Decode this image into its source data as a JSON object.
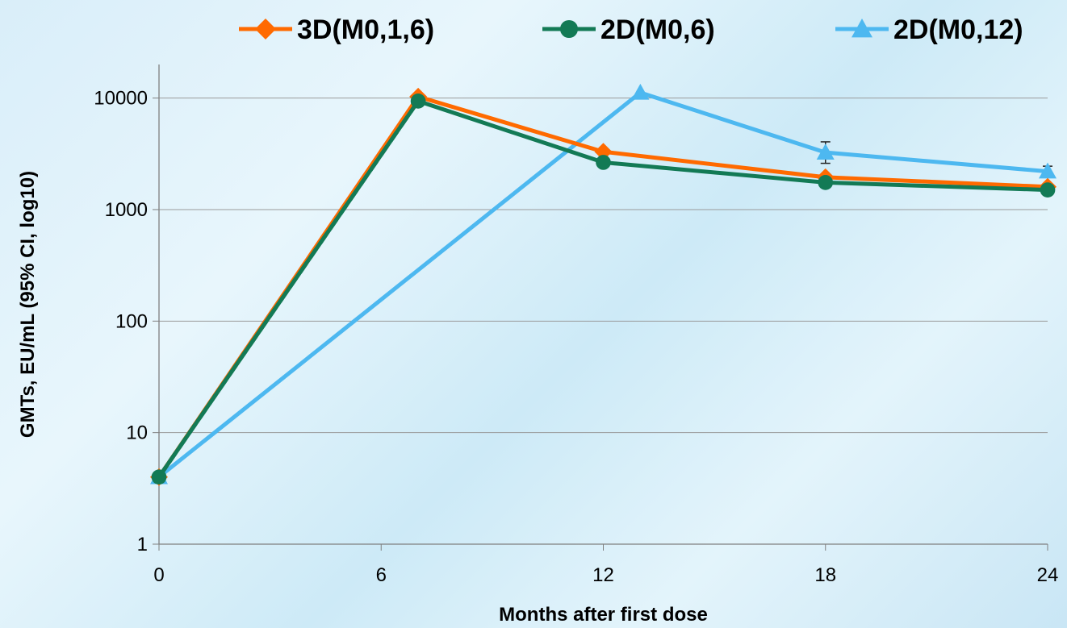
{
  "chart_data": {
    "type": "line",
    "title": "",
    "xlabel": "Months after first dose",
    "ylabel": "GMTs, EU/mL (95% CI, log10)",
    "x_ticks": [
      0,
      6,
      12,
      18,
      24
    ],
    "y_ticks": [
      1,
      10,
      100,
      1000,
      10000
    ],
    "xlim": [
      0,
      24
    ],
    "ylim": [
      1,
      20000
    ],
    "y_scale": "log",
    "grid": "horizontal",
    "legend_position": "top",
    "series": [
      {
        "name": "3D(M0,1,6)",
        "color": "#ff6a00",
        "marker": "diamond",
        "points": [
          {
            "x": 0,
            "y": 4
          },
          {
            "x": 7,
            "y": 10300
          },
          {
            "x": 12,
            "y": 3300
          },
          {
            "x": 18,
            "y": 1950
          },
          {
            "x": 24,
            "y": 1600
          }
        ]
      },
      {
        "name": "2D(M0,6)",
        "color": "#137a55",
        "marker": "circle",
        "points": [
          {
            "x": 0,
            "y": 4
          },
          {
            "x": 7,
            "y": 9400
          },
          {
            "x": 12,
            "y": 2650
          },
          {
            "x": 18,
            "y": 1750
          },
          {
            "x": 24,
            "y": 1500
          }
        ]
      },
      {
        "name": "2D(M0,12)",
        "color": "#4db8f0",
        "marker": "triangle",
        "points": [
          {
            "x": 0,
            "y": 4
          },
          {
            "x": 13,
            "y": 11200
          },
          {
            "x": 18,
            "y": 3250,
            "ci_low": 2600,
            "ci_high": 4050
          },
          {
            "x": 24,
            "y": 2200,
            "ci_low": 2000,
            "ci_high": 2450
          }
        ]
      }
    ]
  }
}
